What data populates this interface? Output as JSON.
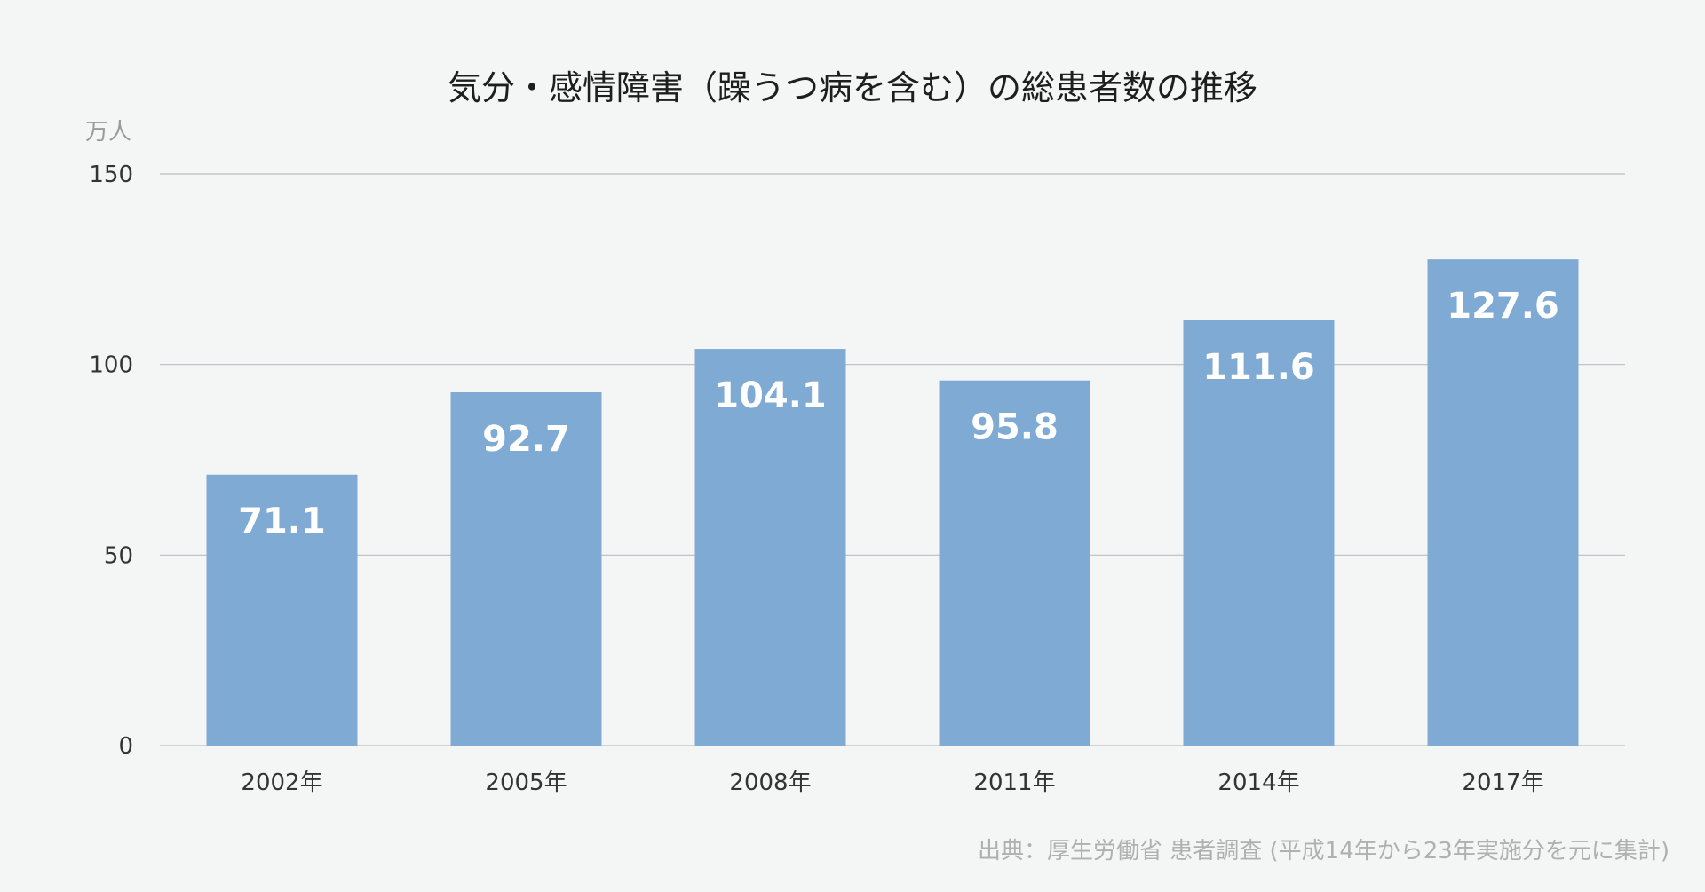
{
  "chart_data": {
    "type": "bar",
    "title": "気分・感情障害（躁うつ病を含む）の総患者数の推移",
    "unit_label": "万人",
    "categories": [
      "2002年",
      "2005年",
      "2008年",
      "2011年",
      "2014年",
      "2017年"
    ],
    "values": [
      71.1,
      92.7,
      104.1,
      95.8,
      111.6,
      127.6
    ],
    "value_labels": [
      "71.1",
      "92.7",
      "104.1",
      "95.8",
      "111.6",
      "127.6"
    ],
    "ylim": [
      0,
      150
    ],
    "yticks": [
      0,
      50,
      100,
      150
    ],
    "ytick_labels": [
      "0",
      "50",
      "100",
      "150"
    ],
    "grid": true,
    "bar_color": "#7faad4",
    "source": "出典：厚生労働省 患者調査 (平成14年から23年実施分を元に集計)"
  }
}
